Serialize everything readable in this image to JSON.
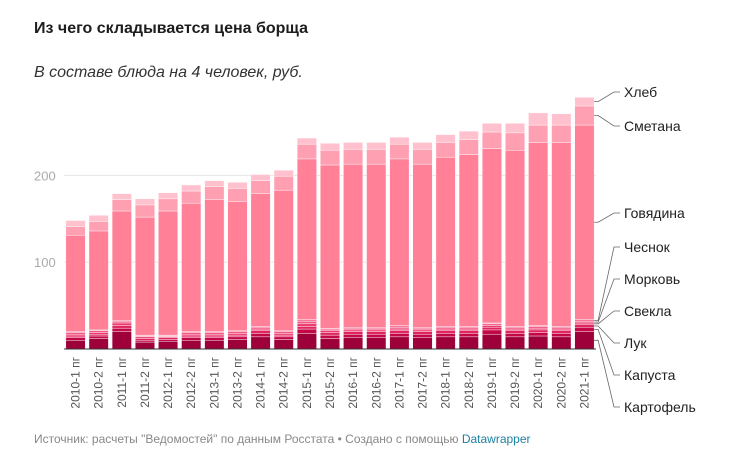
{
  "title": "Из чего складывается цена борща",
  "subtitle": "В составе блюда на 4 человек, руб.",
  "footer": {
    "text": "Источник: расчеты \"Ведомостей\" по данным Росстата • Создано с помощью",
    "link": "Datawrapper"
  },
  "colors": {
    "Картофель": "#9e0039",
    "Капуста": "#c30848",
    "Лук": "#e0245e",
    "Свекла": "#ec3a6e",
    "Морковь": "#f25a85",
    "Чеснок": "#f7779a",
    "Говядина": "#ff8097",
    "Сметана": "#ff9fb2",
    "Хлеб": "#ffc1cd"
  },
  "chart_data": {
    "type": "bar",
    "stacked": true,
    "categories": [
      "2010-1 пг",
      "2010-2 пг",
      "2011-1 пг",
      "2011-2 пг",
      "2012-1 пг",
      "2012-2 пг",
      "2013-1 пг",
      "2013-2 пг",
      "2014-1 пг",
      "2014-2 пг",
      "2015-1 пг",
      "2015-2 пг",
      "2016-1 пг",
      "2016-2 пг",
      "2017-1 пг",
      "2017-2 пг",
      "2018-1 пг",
      "2018-2 пг",
      "2019-1 пг",
      "2019-2 пг",
      "2020-1 пг",
      "2020-2 пг",
      "2021-1 пг"
    ],
    "y_ticks": [
      100,
      200
    ],
    "ylim": [
      0,
      300
    ],
    "series": [
      {
        "name": "Картофель",
        "values": [
          10,
          12,
          20,
          8,
          9,
          10,
          10,
          11,
          14,
          11,
          18,
          12,
          13,
          13,
          14,
          13,
          14,
          14,
          17,
          14,
          15,
          14,
          20
        ]
      },
      {
        "name": "Капуста",
        "values": [
          3,
          3,
          4,
          2,
          2,
          3,
          3,
          3,
          4,
          3,
          5,
          4,
          4,
          4,
          4,
          4,
          4,
          4,
          5,
          4,
          4,
          4,
          5
        ]
      },
      {
        "name": "Лук",
        "values": [
          2,
          2,
          3,
          2,
          2,
          2,
          2,
          2,
          3,
          2,
          3,
          3,
          3,
          3,
          3,
          3,
          3,
          3,
          3,
          3,
          3,
          3,
          3
        ]
      },
      {
        "name": "Свекла",
        "values": [
          2,
          2,
          3,
          2,
          1,
          2,
          2,
          2,
          2,
          2,
          3,
          2,
          2,
          2,
          2,
          2,
          2,
          2,
          2,
          2,
          2,
          2,
          2
        ]
      },
      {
        "name": "Морковь",
        "values": [
          2,
          2,
          2,
          1,
          1,
          2,
          2,
          2,
          2,
          2,
          3,
          2,
          2,
          2,
          2,
          2,
          2,
          2,
          2,
          2,
          2,
          2,
          2
        ]
      },
      {
        "name": "Чеснок",
        "values": [
          1,
          1,
          1,
          1,
          1,
          1,
          1,
          1,
          1,
          1,
          2,
          1,
          1,
          1,
          2,
          1,
          1,
          1,
          1,
          1,
          1,
          1,
          2
        ]
      },
      {
        "name": "Говядина",
        "values": [
          111,
          114,
          126,
          136,
          143,
          148,
          152,
          149,
          153,
          162,
          185,
          188,
          188,
          188,
          192,
          188,
          195,
          198,
          201,
          203,
          211,
          212,
          224
        ]
      },
      {
        "name": "Сметана",
        "values": [
          10,
          11,
          13,
          14,
          14,
          14,
          15,
          15,
          15,
          16,
          17,
          17,
          17,
          17,
          17,
          17,
          17,
          17,
          19,
          20,
          20,
          20,
          22
        ]
      },
      {
        "name": "Хлеб",
        "values": [
          7,
          7,
          7,
          7,
          7,
          7,
          7,
          7,
          7,
          7,
          7,
          8,
          8,
          8,
          8,
          8,
          9,
          10,
          10,
          11,
          14,
          13,
          10
        ]
      }
    ],
    "legend_placement": "right",
    "grid": true
  }
}
